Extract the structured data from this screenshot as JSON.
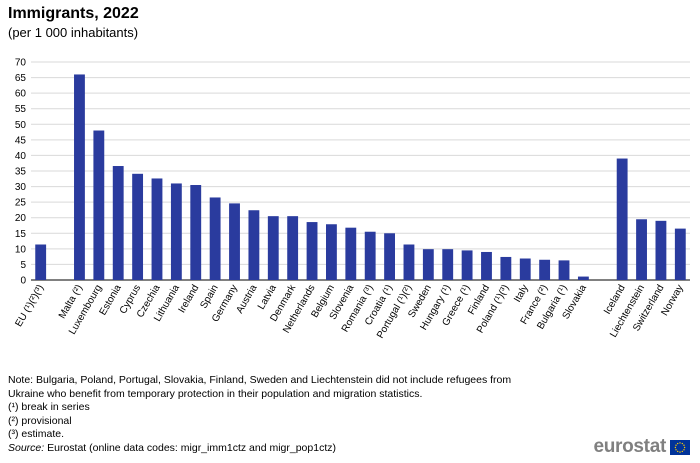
{
  "chart_data": {
    "type": "bar",
    "title": "Immigrants, 2022",
    "subtitle": "(per 1 000 inhabitants)",
    "categories": [
      "EU (¹)(²)(³)",
      "Malta (²)",
      "Luxembourg",
      "Estonia",
      "Cyprus",
      "Czechia",
      "Lithuania",
      "Ireland",
      "Spain",
      "Germany",
      "Austria",
      "Latvia",
      "Denmark",
      "Netherlands",
      "Belgium",
      "Slovenia",
      "Romania (³)",
      "Croatia (¹)",
      "Portugal (¹)(²)",
      "Sweden",
      "Hungary (¹)",
      "Greece (¹)",
      "Finland",
      "Poland (¹)(³)",
      "Italy",
      "France (²)",
      "Bulgaria (¹)",
      "Slovakia",
      "Iceland",
      "Liechtenstein",
      "Switzerland",
      "Norway"
    ],
    "values": [
      11.4,
      66.0,
      48.0,
      36.6,
      34.1,
      32.6,
      31.0,
      30.5,
      26.5,
      24.6,
      22.4,
      20.5,
      20.5,
      18.6,
      17.9,
      16.8,
      15.5,
      15.0,
      11.4,
      9.9,
      9.9,
      9.5,
      9.0,
      7.4,
      6.9,
      6.5,
      6.3,
      1.1,
      39.0,
      19.5,
      19.0,
      16.5
    ],
    "group_start_indices": [
      0,
      1,
      28
    ],
    "ylim": [
      0,
      70
    ],
    "yticks": [
      0,
      5,
      10,
      15,
      20,
      25,
      30,
      35,
      40,
      45,
      50,
      55,
      60,
      65,
      70
    ],
    "grid": true,
    "bar_color": "#2A3B9E",
    "grid_color": "#D9D9D9",
    "xlabel": "",
    "ylabel": ""
  },
  "notes": [
    "Note: Bulgaria, Poland, Portugal, Slovakia, Finland, Sweden and Liechtenstein did not include refugees from",
    "Ukraine who benefit from temporary protection in their population and migration statistics.",
    "(¹) break in series",
    "(²) provisional",
    "(³) estimate."
  ],
  "source": {
    "label": "Source:",
    "text": " Eurostat (online data codes: migr_imm1ctz and migr_pop1ctz)"
  },
  "logo": {
    "text": "eurostat",
    "flag_color": "#003399",
    "star_color": "#FFCC00"
  }
}
